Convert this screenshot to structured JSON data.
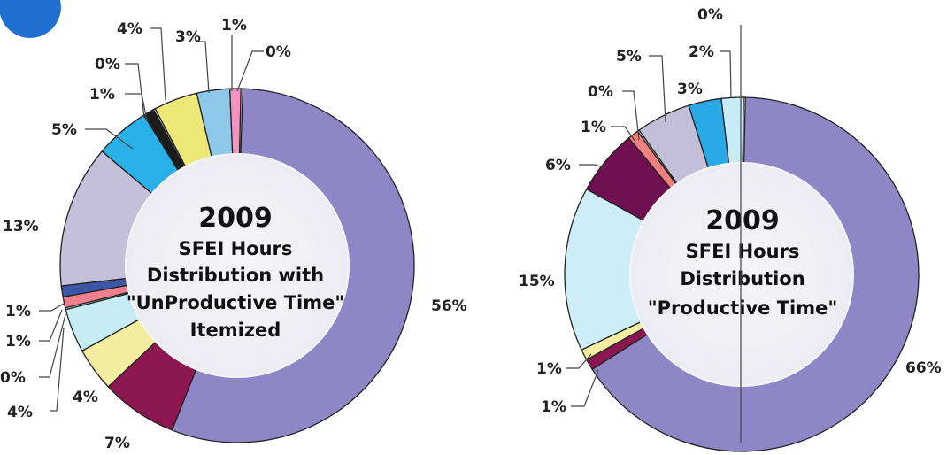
{
  "chart_data": [
    {
      "type": "pie",
      "style": "donut",
      "title_lines": [
        "2009",
        "SFEI Hours",
        "Distribution with",
        "\"UnProductive Time\"",
        "Itemized"
      ],
      "slices": [
        {
          "label": "56%",
          "value": 56,
          "color": "#8f86c6"
        },
        {
          "label": "7%",
          "value": 7,
          "color": "#8c1750"
        },
        {
          "label": "4%",
          "value": 4,
          "color": "#f3eea0"
        },
        {
          "label": "4%",
          "value": 4,
          "color": "#c6ecf4"
        },
        {
          "label": "0%",
          "value": 0,
          "color": "#e5e5e5"
        },
        {
          "label": "1%",
          "value": 1,
          "color": "#f08090"
        },
        {
          "label": "1%",
          "value": 1,
          "color": "#3d56a6"
        },
        {
          "label": "13%",
          "value": 13,
          "color": "#c5c0d9"
        },
        {
          "label": "5%",
          "value": 5,
          "color": "#2ab0e8"
        },
        {
          "label": "1%",
          "value": 1,
          "color": "#1c1c1c"
        },
        {
          "label": "0%",
          "value": 0,
          "color": "#e5e5e5"
        },
        {
          "label": "4%",
          "value": 4,
          "color": "#ece878"
        },
        {
          "label": "3%",
          "value": 3,
          "color": "#8ec8ea"
        },
        {
          "label": "1%",
          "value": 1,
          "color": "#f493c1"
        },
        {
          "label": "0%",
          "value": 0,
          "color": "#e5e5e5"
        }
      ]
    },
    {
      "type": "pie",
      "style": "donut",
      "title_lines": [
        "2009",
        "SFEI Hours",
        "Distribution",
        "\"Productive Time\""
      ],
      "slices": [
        {
          "label": "66%",
          "value": 66,
          "color": "#8f86c6"
        },
        {
          "label": "1%",
          "value": 1,
          "color": "#8c1750"
        },
        {
          "label": "1%",
          "value": 1,
          "color": "#f3eea0"
        },
        {
          "label": "15%",
          "value": 15,
          "color": "#cdeef7"
        },
        {
          "label": "6%",
          "value": 6,
          "color": "#6e0f4f"
        },
        {
          "label": "1%",
          "value": 1,
          "color": "#f07f7f"
        },
        {
          "label": "0%",
          "value": 0,
          "color": "#e5e5e5"
        },
        {
          "label": "5%",
          "value": 5,
          "color": "#c3bfd8"
        },
        {
          "label": "3%",
          "value": 3,
          "color": "#29a9e6"
        },
        {
          "label": "2%",
          "value": 2,
          "color": "#c8ecf6"
        },
        {
          "label": "0%",
          "value": 0,
          "color": "#e5e5e5"
        }
      ]
    }
  ]
}
